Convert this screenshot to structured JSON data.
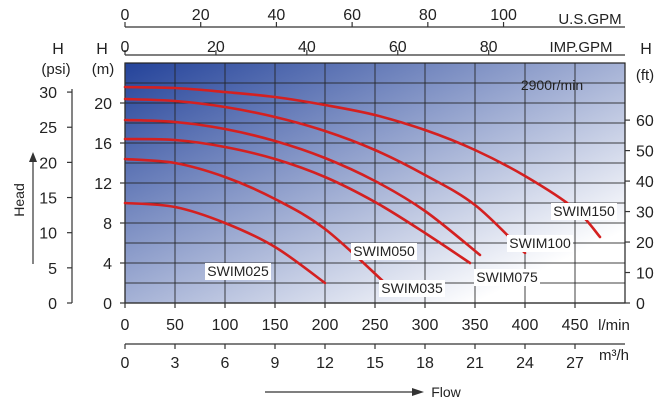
{
  "chart_data": {
    "type": "line",
    "speed_label": "2900r/min",
    "axes": {
      "head_psi": {
        "label": "H",
        "unit": "(psi)",
        "ticks": [
          0,
          5,
          10,
          15,
          20,
          25,
          30
        ]
      },
      "head_m": {
        "label": "H",
        "unit": "(m)",
        "ticks": [
          0,
          4,
          8,
          12,
          16,
          20
        ],
        "range": [
          0,
          24
        ]
      },
      "head_ft": {
        "label": "H",
        "unit": "(ft)",
        "ticks": [
          0,
          10,
          20,
          30,
          40,
          50,
          60
        ]
      },
      "head_axis_title": "Head",
      "us_gpm": {
        "unit": "U.S.GPM",
        "ticks": [
          0,
          20,
          40,
          60,
          80,
          100
        ]
      },
      "imp_gpm": {
        "label": "H",
        "unit": "IMP.GPM",
        "ticks": [
          0,
          20,
          40,
          60,
          80
        ]
      },
      "flow_lmin": {
        "unit": "l/min",
        "ticks": [
          0,
          50,
          100,
          150,
          200,
          250,
          300,
          350,
          400,
          450
        ],
        "range": [
          0,
          500
        ]
      },
      "flow_m3h": {
        "unit": "m³/h",
        "ticks": [
          0,
          3,
          6,
          9,
          12,
          15,
          18,
          21,
          24,
          27
        ]
      },
      "flow_axis_title": "Flow"
    },
    "x_unit": "l/min",
    "y_unit": "m",
    "series": [
      {
        "name": "SWIM025",
        "color": "#d42020",
        "x": [
          0,
          50,
          100,
          150,
          200
        ],
        "y": [
          10,
          9.6,
          8,
          5.6,
          2
        ]
      },
      {
        "name": "SWIM035",
        "color": "#d42020",
        "x": [
          0,
          50,
          100,
          150,
          200,
          260
        ],
        "y": [
          14.4,
          14,
          12.6,
          10.4,
          7.4,
          2
        ]
      },
      {
        "name": "SWIM050",
        "color": "#d42020",
        "x": [
          0,
          50,
          100,
          150,
          200,
          250,
          300,
          345
        ],
        "y": [
          16.4,
          16.3,
          15.6,
          14.4,
          12.6,
          10.1,
          7,
          4
        ]
      },
      {
        "name": "SWIM075",
        "color": "#d42020",
        "x": [
          0,
          50,
          100,
          150,
          200,
          250,
          300,
          355
        ],
        "y": [
          18.3,
          18.1,
          17.4,
          16.2,
          14.5,
          12.2,
          9.2,
          4.8
        ]
      },
      {
        "name": "SWIM100",
        "color": "#d42020",
        "x": [
          0,
          50,
          100,
          150,
          200,
          250,
          300,
          350,
          400
        ],
        "y": [
          20.4,
          20.2,
          19.6,
          18.6,
          17.2,
          15.3,
          12.8,
          9.8,
          5
        ]
      },
      {
        "name": "SWIM150",
        "color": "#d42020",
        "x": [
          0,
          50,
          100,
          150,
          200,
          250,
          300,
          350,
          400,
          450,
          475
        ],
        "y": [
          21.6,
          21.5,
          21.1,
          20.6,
          19.8,
          18.8,
          17.3,
          15.3,
          12.7,
          9.4,
          6.6
        ]
      }
    ],
    "grid": true,
    "background_gradient": [
      "#24439a",
      "#ffffff"
    ]
  }
}
